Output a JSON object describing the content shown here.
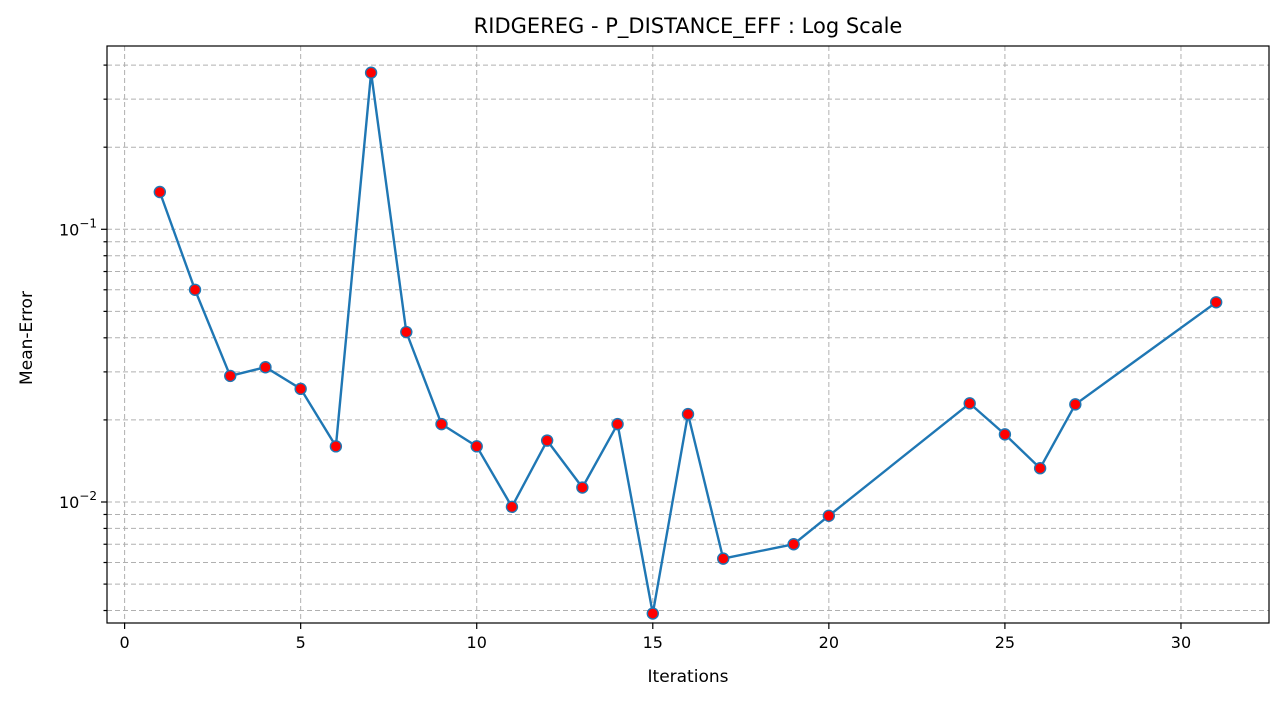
{
  "chart_data": {
    "type": "line",
    "title": "RIDGEREG - P_DISTANCE_EFF : Log Scale",
    "xlabel": "Iterations",
    "ylabel": "Mean-Error",
    "yscale": "log",
    "xlim": [
      -0.5,
      32.5
    ],
    "ylim": [
      0.0036,
      0.47
    ],
    "x_ticks": [
      0,
      5,
      10,
      15,
      20,
      25,
      30
    ],
    "y_major_ticks": [
      {
        "value": 0.01,
        "base": "10",
        "exp": "−2"
      },
      {
        "value": 0.1,
        "base": "10",
        "exp": "−1"
      }
    ],
    "y_minor_ticks": [
      0.004,
      0.005,
      0.006,
      0.007,
      0.008,
      0.009,
      0.02,
      0.03,
      0.04,
      0.05,
      0.06,
      0.07,
      0.08,
      0.09,
      0.2,
      0.3,
      0.4
    ],
    "grid": true,
    "colors": {
      "line": "#1f77b4",
      "marker_fill": "#ff0000",
      "marker_edge": "#1f77b4"
    },
    "series": [
      {
        "x": [
          1,
          2,
          3,
          4,
          5,
          6,
          7,
          8,
          9,
          10,
          11,
          12,
          13,
          14,
          15,
          16,
          17,
          19,
          20,
          24,
          25,
          26,
          27,
          31
        ],
        "y": [
          0.137,
          0.06,
          0.029,
          0.0312,
          0.026,
          0.016,
          0.375,
          0.042,
          0.0193,
          0.016,
          0.0096,
          0.0168,
          0.0113,
          0.0193,
          0.0039,
          0.021,
          0.0062,
          0.007,
          0.0089,
          0.023,
          0.0177,
          0.0133,
          0.0228,
          0.054
        ]
      }
    ]
  }
}
